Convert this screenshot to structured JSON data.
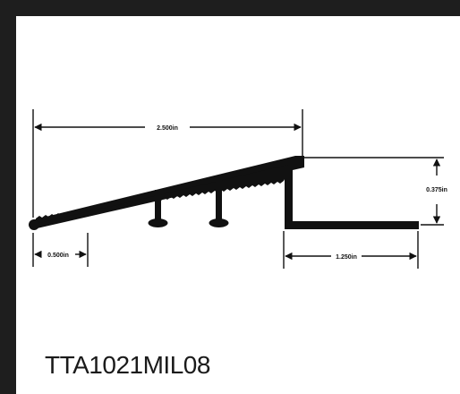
{
  "colors": {
    "frame": "#1e1e1e",
    "panel": "#ffffff",
    "ink": "#111111"
  },
  "dimensions": {
    "overall_length": "2.500in",
    "height": "0.375in",
    "nose_width": "0.500in",
    "leg_length": "1.250in"
  },
  "product": {
    "code": "TTA1021MIL08"
  }
}
